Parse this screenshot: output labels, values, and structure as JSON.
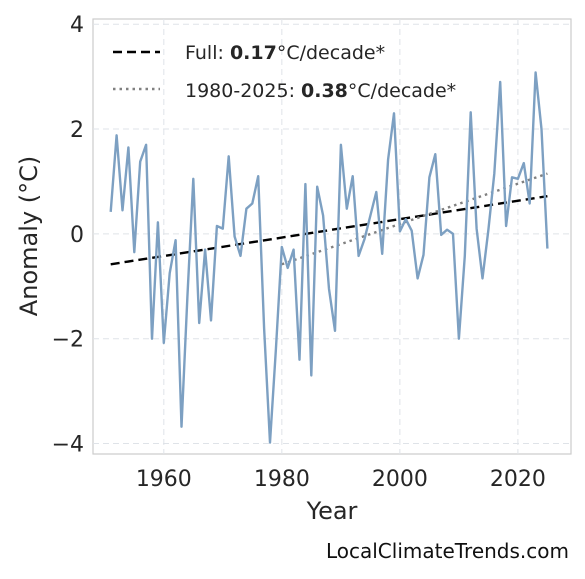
{
  "chart_data": {
    "type": "line",
    "xlabel": "Year",
    "ylabel": "Anomaly (°C)",
    "xlim": [
      1948,
      2029
    ],
    "ylim": [
      -4.2,
      4.1
    ],
    "xticks": [
      "1960",
      "1980",
      "2000",
      "2020"
    ],
    "yticks": [
      "−4",
      "−2",
      "0",
      "2",
      "4"
    ],
    "grid": true,
    "legend_position": "top-left",
    "series": [
      {
        "color": "#7da0c2",
        "x": [
          1951,
          1952,
          1953,
          1954,
          1955,
          1956,
          1957,
          1958,
          1959,
          1960,
          1961,
          1962,
          1963,
          1964,
          1965,
          1966,
          1967,
          1968,
          1969,
          1970,
          1971,
          1972,
          1973,
          1974,
          1975,
          1976,
          1977,
          1978,
          1979,
          1980,
          1981,
          1982,
          1983,
          1984,
          1985,
          1986,
          1987,
          1988,
          1989,
          1990,
          1991,
          1992,
          1993,
          1994,
          1995,
          1996,
          1997,
          1998,
          1999,
          2000,
          2001,
          2002,
          2003,
          2004,
          2005,
          2006,
          2007,
          2008,
          2009,
          2010,
          2011,
          2012,
          2013,
          2014,
          2015,
          2016,
          2017,
          2018,
          2019,
          2020,
          2021,
          2022,
          2023,
          2024,
          2025
        ],
        "y": [
          0.42,
          1.88,
          0.45,
          1.65,
          -0.35,
          1.38,
          1.7,
          -2.0,
          0.22,
          -2.08,
          -0.75,
          -0.12,
          -3.68,
          -1.2,
          1.05,
          -1.7,
          -0.3,
          -1.65,
          0.15,
          0.1,
          1.48,
          -0.05,
          -0.42,
          0.48,
          0.58,
          1.1,
          -1.8,
          -3.98,
          -2.2,
          -0.25,
          -0.65,
          -0.3,
          -2.4,
          0.95,
          -2.7,
          0.9,
          0.35,
          -1.05,
          -1.85,
          1.7,
          0.48,
          1.1,
          -0.42,
          -0.1,
          0.35,
          0.8,
          -0.38,
          1.42,
          2.3,
          0.05,
          0.28,
          0.06,
          -0.85,
          -0.4,
          1.08,
          1.52,
          -0.02,
          0.08,
          0.0,
          -2.0,
          -0.42,
          2.32,
          0.1,
          -0.85,
          0.08,
          1.15,
          2.9,
          0.15,
          1.08,
          1.05,
          1.35,
          0.58,
          3.08,
          2.0,
          -0.28
        ]
      }
    ],
    "trends": [
      {
        "label_prefix": "Full: ",
        "value": "0.17",
        "label_suffix": "°C/decade*",
        "style": "dashed",
        "color": "#000000",
        "x": [
          1951,
          2025
        ],
        "y": [
          -0.58,
          0.72
        ]
      },
      {
        "label_prefix": "1980-2025: ",
        "value": "0.38",
        "label_suffix": "°C/decade*",
        "style": "dotted",
        "color": "#808080",
        "x": [
          1980,
          2025
        ],
        "y": [
          -0.58,
          1.15
        ]
      }
    ]
  },
  "credit": "LocalClimateTrends.com"
}
